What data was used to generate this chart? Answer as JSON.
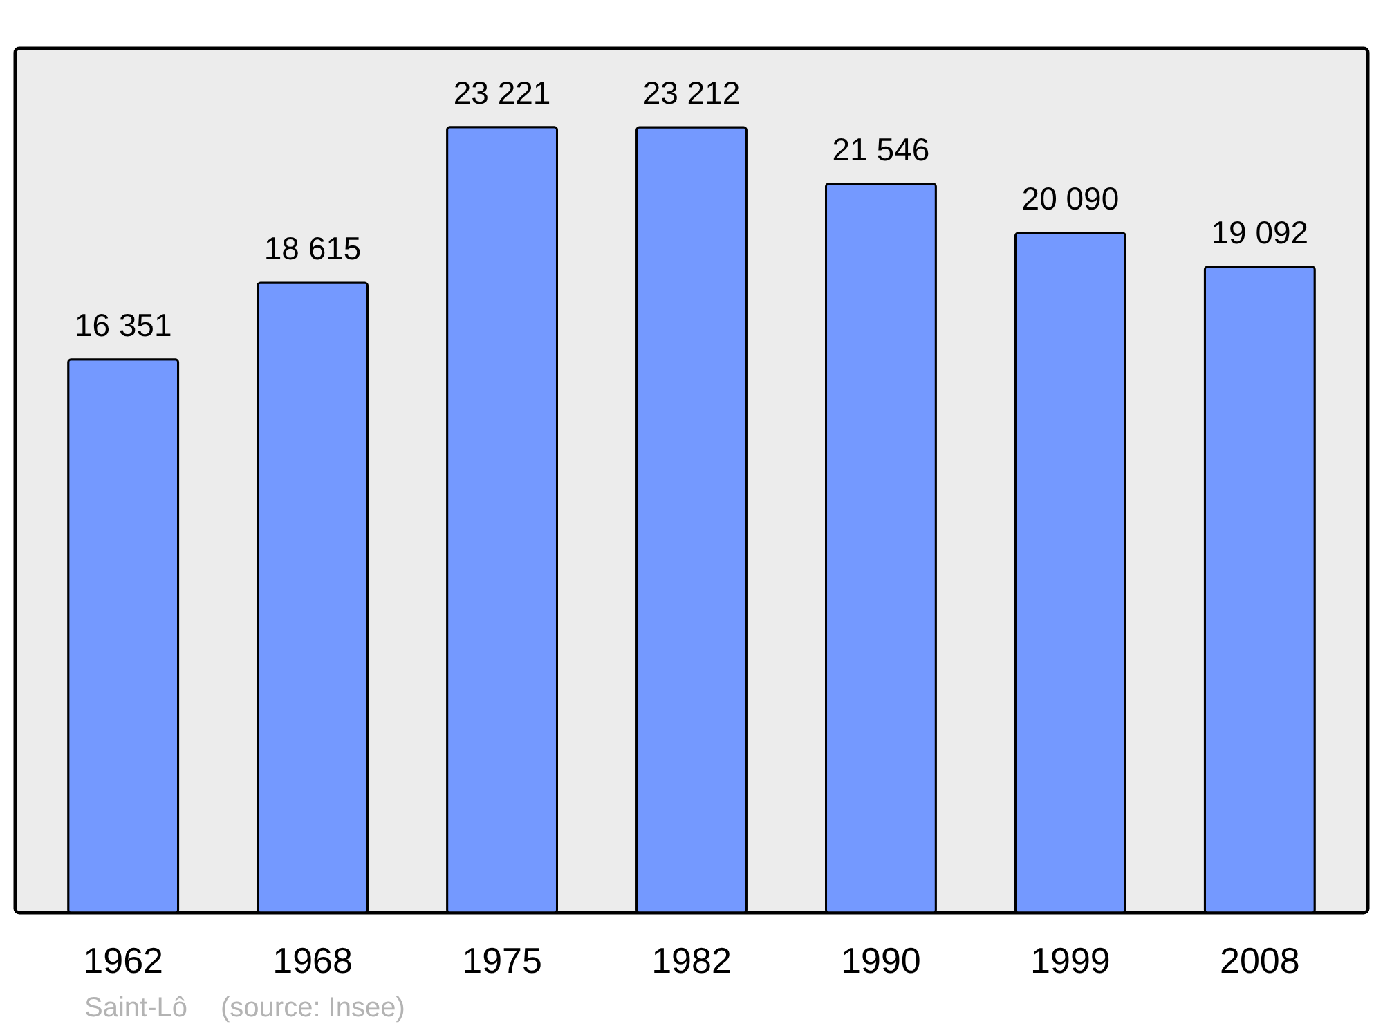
{
  "chart_data": {
    "type": "bar",
    "categories": [
      "1962",
      "1968",
      "1975",
      "1982",
      "1990",
      "1999",
      "2008"
    ],
    "values": [
      16351,
      18615,
      23221,
      23212,
      21546,
      20090,
      19092
    ],
    "value_labels": [
      "16 351",
      "18 615",
      "23 221",
      "23 212",
      "21 546",
      "20 090",
      "19 092"
    ],
    "color": "#7499ff",
    "annotations": [
      "Saint-Lô",
      "(source: Insee)"
    ]
  }
}
